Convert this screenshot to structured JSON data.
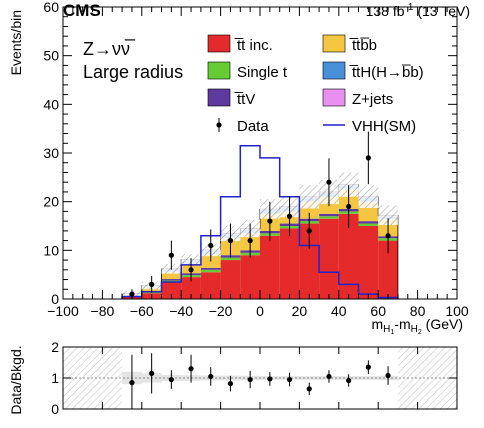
{
  "header": {
    "experiment": "CMS",
    "lumi_prefix": "138 fb",
    "lumi_exponent": "-1",
    "lumi_suffix": " (13 TeV)"
  },
  "annotations": {
    "channel": "Z→νν̅",
    "category": "Large radius"
  },
  "chart_data": [
    {
      "type": "bar",
      "stacked": true,
      "ylabel": "Events/bin",
      "xlabel": {
        "base": "m",
        "sub1": "H",
        "subsub1": "1",
        "sep": "-m",
        "sub2": "H",
        "subsub2": "2",
        "unit": " (GeV)"
      },
      "xlim": [
        -100,
        100
      ],
      "ylim": [
        0,
        60
      ],
      "xticks": [
        -100,
        -80,
        -60,
        -40,
        -20,
        0,
        20,
        40,
        60,
        80,
        100
      ],
      "yticks": [
        0,
        10,
        20,
        30,
        40,
        50,
        60
      ],
      "bin_edges": [
        -70,
        -60,
        -50,
        -40,
        -30,
        -20,
        -10,
        0,
        10,
        20,
        30,
        40,
        50,
        60,
        70
      ],
      "series": [
        {
          "name": "t̅t inc.",
          "color": "#e42a2a",
          "values": [
            0.5,
            1.2,
            3.5,
            4.5,
            5.5,
            8,
            9,
            13,
            14.5,
            15.5,
            16.5,
            17.5,
            15,
            12
          ]
        },
        {
          "name": "Single t",
          "color": "#66cc33",
          "values": [
            0.1,
            0.2,
            0.3,
            0.4,
            0.5,
            0.5,
            0.5,
            0.5,
            0.5,
            0.5,
            0.5,
            0.5,
            0.5,
            0.5
          ]
        },
        {
          "name": "t̅tV",
          "color": "#5e3a9e",
          "values": [
            0.1,
            0.2,
            0.3,
            0.4,
            0.4,
            0.5,
            0.5,
            0.5,
            0.5,
            0.5,
            0.5,
            0.5,
            0.5,
            0.4
          ]
        },
        {
          "name": "t̅tb̅b",
          "color": "#f5c642",
          "values": [
            0.3,
            0.8,
            1.5,
            2.0,
            2.8,
            3.5,
            3.5,
            3.5,
            2.5,
            3.5,
            3.5,
            4.0,
            4.0,
            3.5
          ]
        },
        {
          "name": "t̅tH(H→b̅b)",
          "color": "#4a90d9",
          "values": [
            0.1,
            0.3,
            0.5,
            0.6,
            0.7,
            0.8,
            0.8,
            0.8,
            0.8,
            0.8,
            0.8,
            0.8,
            0.8,
            0.6
          ]
        },
        {
          "name": "Z+jets",
          "color": "#e98ff0",
          "values": [
            0.05,
            0.1,
            0.1,
            0.2,
            0.2,
            0.2,
            0.2,
            0.2,
            0.2,
            0.2,
            0.2,
            0.2,
            0.2,
            0.2
          ]
        }
      ],
      "uncertainty": [
        0.5,
        0.8,
        1.0,
        1.1,
        1.3,
        1.6,
        1.8,
        2.0,
        2.2,
        2.4,
        2.5,
        2.5,
        2.3,
        2.0
      ],
      "data": {
        "name": "Data",
        "x": [
          -65,
          -55,
          -45,
          -35,
          -25,
          -15,
          -5,
          5,
          15,
          25,
          35,
          45,
          55,
          65
        ],
        "y": [
          1,
          3,
          9,
          6,
          11,
          12,
          12,
          16,
          17,
          14,
          24,
          19,
          29,
          13
        ],
        "err": [
          1,
          1.7,
          3,
          2.4,
          3.3,
          3.5,
          3.5,
          4,
          4.1,
          3.7,
          4.9,
          4.4,
          5.4,
          3.6
        ]
      },
      "signal": {
        "name": "VHH(SM)",
        "color": "#2222cc",
        "values": [
          0.5,
          1.5,
          3.5,
          7,
          13,
          21,
          31.5,
          29,
          21,
          11,
          5.5,
          3,
          1,
          0.3
        ]
      }
    },
    {
      "type": "scatter",
      "ylabel": "Data/Bkgd.",
      "xlim": [
        -100,
        100
      ],
      "ylim": [
        0,
        2
      ],
      "yticks": [
        0,
        1,
        2
      ],
      "excluded_ranges": [
        [
          -100,
          -70
        ],
        [
          70,
          100
        ]
      ],
      "x": [
        -65,
        -55,
        -45,
        -35,
        -25,
        -15,
        -5,
        5,
        15,
        25,
        35,
        45,
        55,
        65
      ],
      "y": [
        0.85,
        1.15,
        0.95,
        1.3,
        1.05,
        0.82,
        0.95,
        0.97,
        0.95,
        0.65,
        1.05,
        0.92,
        1.35,
        1.08
      ],
      "err": [
        0.9,
        0.65,
        0.3,
        0.45,
        0.3,
        0.25,
        0.28,
        0.22,
        0.22,
        0.2,
        0.2,
        0.2,
        0.22,
        0.3
      ],
      "band": [
        0.2,
        0.15,
        0.1,
        0.09,
        0.08,
        0.08,
        0.07,
        0.06,
        0.06,
        0.06,
        0.06,
        0.06,
        0.06,
        0.07
      ]
    }
  ]
}
